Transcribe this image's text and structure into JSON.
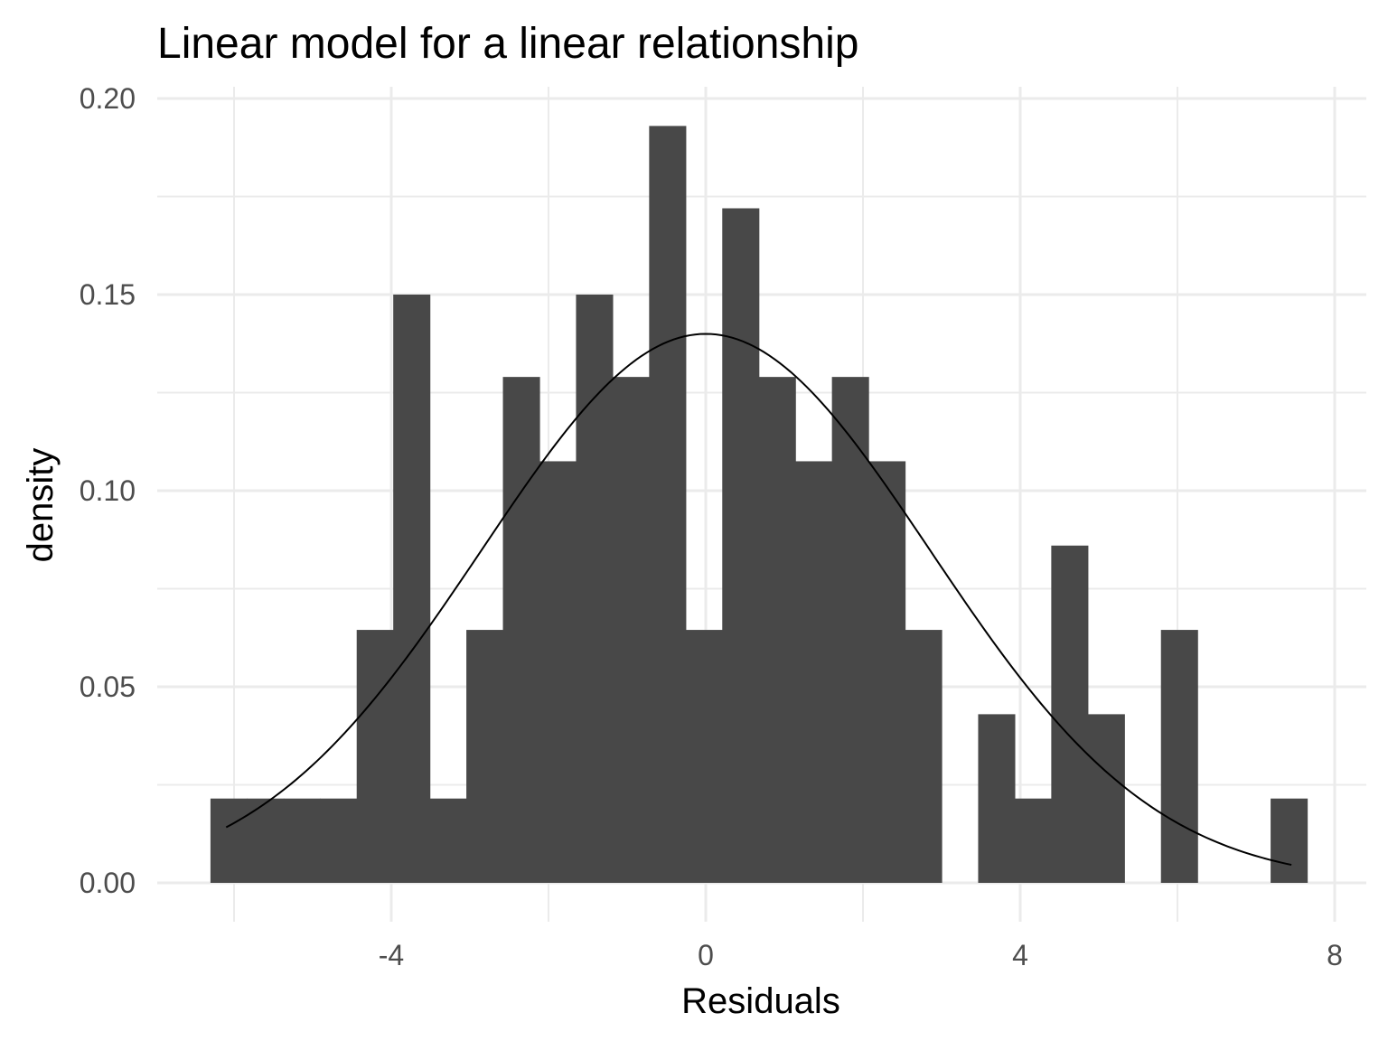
{
  "chart_data": {
    "type": "histogram",
    "title": "Linear model for a linear relationship",
    "xlabel": "Residuals",
    "ylabel": "density",
    "xlim": [
      -6.0,
      8.0
    ],
    "ylim": [
      0.0,
      0.2
    ],
    "x_ticks": [
      -4,
      0,
      4,
      8
    ],
    "y_ticks": [
      0.0,
      0.05,
      0.1,
      0.15,
      0.2
    ],
    "x_tick_labels": [
      "-4",
      "0",
      "4",
      "8"
    ],
    "y_tick_labels": [
      "0.00",
      "0.05",
      "0.10",
      "0.15",
      "0.20"
    ],
    "grid": true,
    "bin_width": 0.465,
    "bins": [
      {
        "x0": -6.3,
        "x1": -5.835,
        "density": 0.0215
      },
      {
        "x0": -5.835,
        "x1": -5.37,
        "density": 0.0215
      },
      {
        "x0": -5.37,
        "x1": -4.905,
        "density": 0.0215
      },
      {
        "x0": -4.905,
        "x1": -4.44,
        "density": 0.0215
      },
      {
        "x0": -4.44,
        "x1": -3.975,
        "density": 0.0645
      },
      {
        "x0": -3.975,
        "x1": -3.51,
        "density": 0.15
      },
      {
        "x0": -3.51,
        "x1": -3.045,
        "density": 0.0215
      },
      {
        "x0": -3.045,
        "x1": -2.58,
        "density": 0.0645
      },
      {
        "x0": -2.58,
        "x1": -2.115,
        "density": 0.129
      },
      {
        "x0": -2.115,
        "x1": -1.65,
        "density": 0.1075
      },
      {
        "x0": -1.65,
        "x1": -1.185,
        "density": 0.15
      },
      {
        "x0": -1.185,
        "x1": -0.72,
        "density": 0.129
      },
      {
        "x0": -0.72,
        "x1": -0.255,
        "density": 0.193
      },
      {
        "x0": -0.255,
        "x1": 0.21,
        "density": 0.0645
      },
      {
        "x0": 0.21,
        "x1": 0.675,
        "density": 0.172
      },
      {
        "x0": 0.675,
        "x1": 1.14,
        "density": 0.129
      },
      {
        "x0": 1.14,
        "x1": 1.605,
        "density": 0.1075
      },
      {
        "x0": 1.605,
        "x1": 2.07,
        "density": 0.129
      },
      {
        "x0": 2.07,
        "x1": 2.535,
        "density": 0.1075
      },
      {
        "x0": 2.535,
        "x1": 3.0,
        "density": 0.0645
      },
      {
        "x0": 3.0,
        "x1": 3.465,
        "density": 0.0
      },
      {
        "x0": 3.465,
        "x1": 3.93,
        "density": 0.043
      },
      {
        "x0": 3.93,
        "x1": 4.395,
        "density": 0.0215
      },
      {
        "x0": 4.395,
        "x1": 4.86,
        "density": 0.086
      },
      {
        "x0": 4.86,
        "x1": 5.325,
        "density": 0.043
      },
      {
        "x0": 5.325,
        "x1": 5.79,
        "density": 0.0
      },
      {
        "x0": 5.79,
        "x1": 6.255,
        "density": 0.0645
      },
      {
        "x0": 6.255,
        "x1": 6.72,
        "density": 0.0
      },
      {
        "x0": 6.72,
        "x1": 7.185,
        "density": 0.0
      },
      {
        "x0": 7.185,
        "x1": 7.65,
        "density": 0.0215
      }
    ],
    "normal_curve": {
      "mean": 0.0,
      "sd": 2.85,
      "x_range": [
        -6.1,
        7.45
      ]
    }
  }
}
